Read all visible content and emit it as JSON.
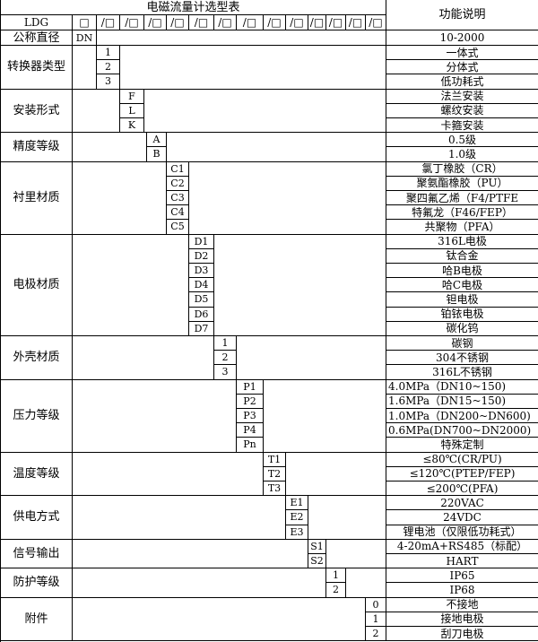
{
  "title": "电磁流量计选型表",
  "function_header": "功能说明",
  "model_prefix": "LDG",
  "box_symbol": "□",
  "slot_symbol": "/□",
  "nominal": {
    "label": "公称直径",
    "code": "DN",
    "desc": "10-2000"
  },
  "groups": [
    {
      "label": "转换器类型",
      "items": [
        {
          "code": "1",
          "desc": "一体式"
        },
        {
          "code": "2",
          "desc": "分体式"
        },
        {
          "code": "3",
          "desc": "低功耗式"
        }
      ]
    },
    {
      "label": "安装形式",
      "items": [
        {
          "code": "F",
          "desc": "法兰安装"
        },
        {
          "code": "L",
          "desc": "螺纹安装"
        },
        {
          "code": "K",
          "desc": "卡箍安装"
        }
      ]
    },
    {
      "label": "精度等级",
      "items": [
        {
          "code": "A",
          "desc": "0.5级"
        },
        {
          "code": "B",
          "desc": "1.0级"
        }
      ]
    },
    {
      "label": "衬里材质",
      "items": [
        {
          "code": "C1",
          "desc": "氯丁橡胶（CR）"
        },
        {
          "code": "C2",
          "desc": "聚氨酯橡胶（PU）"
        },
        {
          "code": "C3",
          "desc": "聚四氟乙烯（F4/PTFE"
        },
        {
          "code": "C4",
          "desc": "特氟龙（F46/FEP）"
        },
        {
          "code": "C5",
          "desc": "共聚物（PFA）"
        }
      ]
    },
    {
      "label": "电极材质",
      "items": [
        {
          "code": "D1",
          "desc": "316L电极"
        },
        {
          "code": "D2",
          "desc": "钛合金"
        },
        {
          "code": "D3",
          "desc": "哈B电极"
        },
        {
          "code": "D4",
          "desc": "哈C电极"
        },
        {
          "code": "D5",
          "desc": "钽电极"
        },
        {
          "code": "D6",
          "desc": "铂铱电极"
        },
        {
          "code": "D7",
          "desc": "碳化钨"
        }
      ]
    },
    {
      "label": "外壳材质",
      "items": [
        {
          "code": "1",
          "desc": "碳钢"
        },
        {
          "code": "2",
          "desc": "304不锈钢"
        },
        {
          "code": "3",
          "desc": "316L不锈钢"
        }
      ]
    },
    {
      "label": "压力等级",
      "items": [
        {
          "code": "P1",
          "desc": "4.0MPa（DN10~150)",
          "left": true
        },
        {
          "code": "P2",
          "desc": "1.6MPa（DN15~150)",
          "left": true
        },
        {
          "code": "P3",
          "desc": "1.0MPa（DN200~DN600)",
          "left": true
        },
        {
          "code": "P4",
          "desc": "0.6MPa(DN700~DN2000)",
          "left": true
        },
        {
          "code": "Pn",
          "desc": "特殊定制"
        }
      ]
    },
    {
      "label": "温度等级",
      "items": [
        {
          "code": "T1",
          "desc": "≤80℃(CR/PU)"
        },
        {
          "code": "T2",
          "desc": "≤120℃(PTEP/FEP)"
        },
        {
          "code": "T3",
          "desc": "≤200℃(PFA)"
        }
      ]
    },
    {
      "label": "供电方式",
      "items": [
        {
          "code": "E1",
          "desc": "220VAC"
        },
        {
          "code": "E2",
          "desc": "24VDC"
        },
        {
          "code": "E3",
          "desc": "锂电池（仅限低功耗式）"
        }
      ]
    },
    {
      "label": "信号输出",
      "items": [
        {
          "code": "S1",
          "desc": "4-20mA+RS485（标配）"
        },
        {
          "code": "S2",
          "desc": "HART"
        }
      ]
    },
    {
      "label": "防护等级",
      "items": [
        {
          "code": "1",
          "desc": "IP65"
        },
        {
          "code": "2",
          "desc": "IP68"
        }
      ]
    },
    {
      "label": "附件",
      "items": [
        {
          "code": "0",
          "desc": "不接地"
        },
        {
          "code": "1",
          "desc": "接地电极"
        },
        {
          "code": "2",
          "desc": "刮刀电极"
        }
      ]
    }
  ]
}
